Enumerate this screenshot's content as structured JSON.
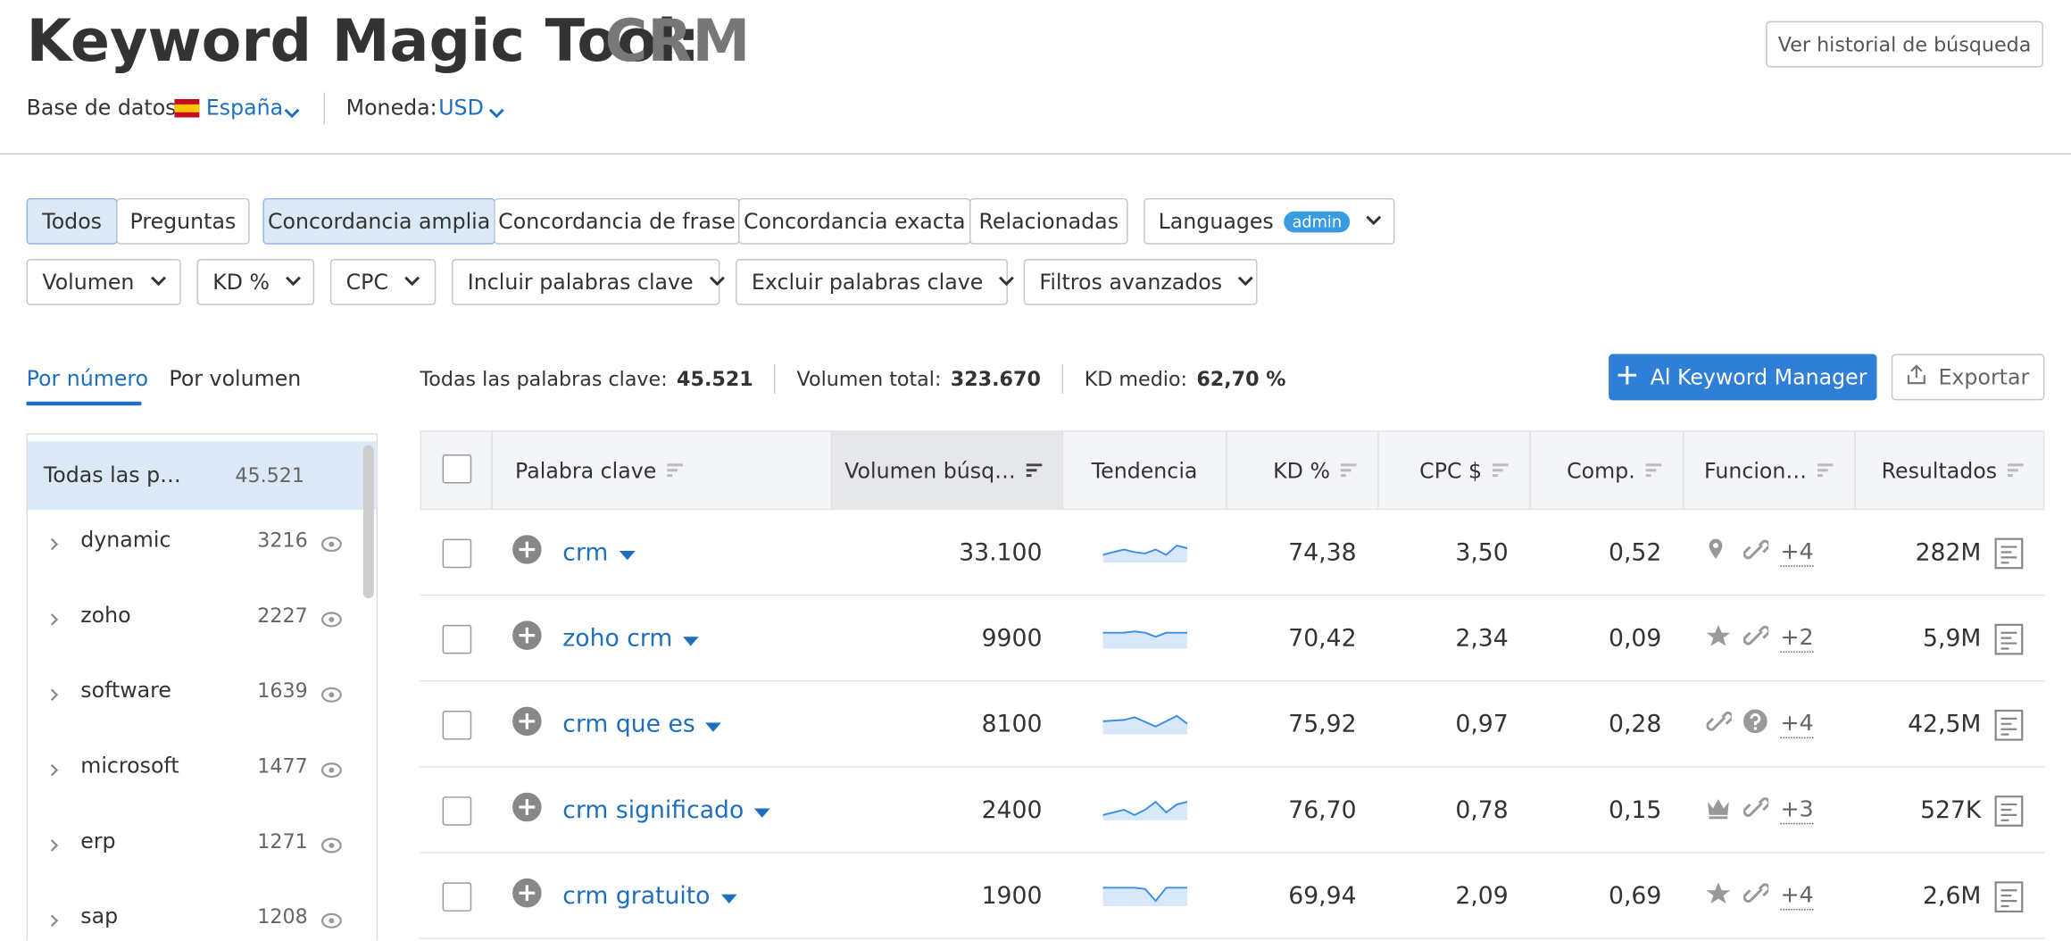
{
  "header": {
    "title": "Keyword Magic Tool:",
    "query": "CRM",
    "history_button": "Ver historial de búsqueda",
    "database_label": "Base de datos:",
    "database": "España",
    "currency_label": "Moneda:",
    "currency": "USD"
  },
  "filters": {
    "match_tabs": [
      "Todos",
      "Preguntas"
    ],
    "type_tabs": [
      "Concordancia amplia",
      "Concordancia de frase",
      "Concordancia exacta",
      "Relacionadas"
    ],
    "languages": "Languages",
    "languages_badge": "admin",
    "dropdowns": [
      "Volumen",
      "KD %",
      "CPC",
      "Incluir palabras clave",
      "Excluir palabras clave",
      "Filtros avanzados"
    ]
  },
  "sidebar": {
    "tabs": [
      "Por número",
      "Por volumen"
    ],
    "all": {
      "name": "Todas las p…",
      "count": "45.521"
    },
    "groups": [
      {
        "name": "dynamic",
        "count": "3216"
      },
      {
        "name": "zoho",
        "count": "2227"
      },
      {
        "name": "software",
        "count": "1639"
      },
      {
        "name": "microsoft",
        "count": "1477"
      },
      {
        "name": "erp",
        "count": "1271"
      },
      {
        "name": "sap",
        "count": "1208"
      }
    ]
  },
  "summary": {
    "all_label": "Todas las palabras clave:",
    "all": "45.521",
    "volume_label": "Volumen total:",
    "volume": "323.670",
    "kd_label": "KD medio:",
    "kd": "62,70 %"
  },
  "actions": {
    "keyword_manager": "Al Keyword Manager",
    "export": "Exportar"
  },
  "table": {
    "columns": [
      "Palabra clave",
      "Volumen búsq…",
      "Tendencia",
      "KD %",
      "CPC $",
      "Comp.",
      "Funcion…",
      "Resultados"
    ],
    "rows": [
      {
        "keyword": "crm",
        "volume": "33.100",
        "kd": "74,38",
        "cpc": "3,50",
        "comp": "0,52",
        "more": "+4",
        "results": "282M"
      },
      {
        "keyword": "zoho crm",
        "volume": "9900",
        "kd": "70,42",
        "cpc": "2,34",
        "comp": "0,09",
        "more": "+2",
        "results": "5,9M"
      },
      {
        "keyword": "crm que es",
        "volume": "8100",
        "kd": "75,92",
        "cpc": "0,97",
        "comp": "0,28",
        "more": "+4",
        "results": "42,5M"
      },
      {
        "keyword": "crm significado",
        "volume": "2400",
        "kd": "76,70",
        "cpc": "0,78",
        "comp": "0,15",
        "more": "+3",
        "results": "527K"
      },
      {
        "keyword": "crm gratuito",
        "volume": "1900",
        "kd": "69,94",
        "cpc": "2,09",
        "comp": "0,69",
        "more": "+4",
        "results": "2,6M"
      }
    ]
  }
}
